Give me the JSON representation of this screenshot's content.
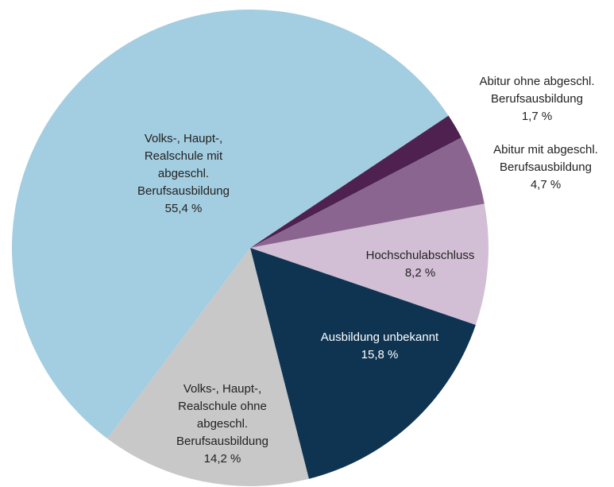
{
  "chart_data": {
    "type": "pie",
    "categories": [
      "Abitur ohne abgeschl. Berufsausbildung",
      "Abitur mit abgeschl. Berufsausbildung",
      "Hochschulabschluss",
      "Ausbildung unbekannt",
      "Volks-, Haupt-, Realschule ohne abgeschl. Berufsausbildung",
      "Volks-, Haupt-, Realschule mit abgeschl. Berufsausbildung"
    ],
    "values": [
      1.7,
      4.7,
      8.2,
      15.8,
      14.2,
      55.4
    ],
    "value_labels": [
      "1,7 %",
      "4,7 %",
      "8,2 %",
      "15,8 %",
      "14,2 %",
      "55,4 %"
    ],
    "colors": [
      "#4e2150",
      "#8a6590",
      "#d3bfd5",
      "#0e3451",
      "#c8c8c8",
      "#a3cde0"
    ]
  }
}
